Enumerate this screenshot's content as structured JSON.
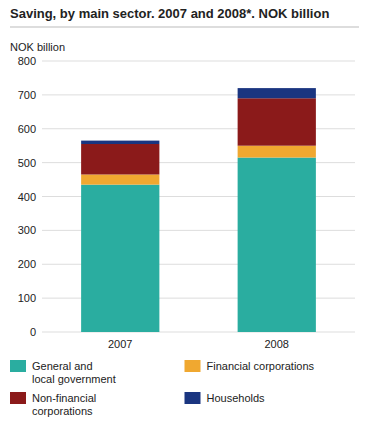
{
  "chart_data": {
    "type": "bar",
    "stacked": true,
    "title": "Saving, by main sector. 2007 and 2008*. NOK billion",
    "ylabel": "NOK billion",
    "categories": [
      "2007",
      "2008"
    ],
    "series": [
      {
        "name": "General and\nlocal government",
        "color": "#2aada0",
        "values": [
          435,
          515
        ]
      },
      {
        "name": "Financial corporations",
        "color": "#f0a830",
        "values": [
          30,
          35
        ]
      },
      {
        "name": "Non-financial\ncorporations",
        "color": "#8b1a1a",
        "values": [
          90,
          140
        ]
      },
      {
        "name": "Households",
        "color": "#1a3580",
        "values": [
          10,
          30
        ]
      }
    ],
    "ylim": [
      0,
      800
    ],
    "yticks": [
      0,
      100,
      200,
      300,
      400,
      500,
      600,
      700,
      800
    ],
    "grid": true,
    "legend": "bottom"
  }
}
